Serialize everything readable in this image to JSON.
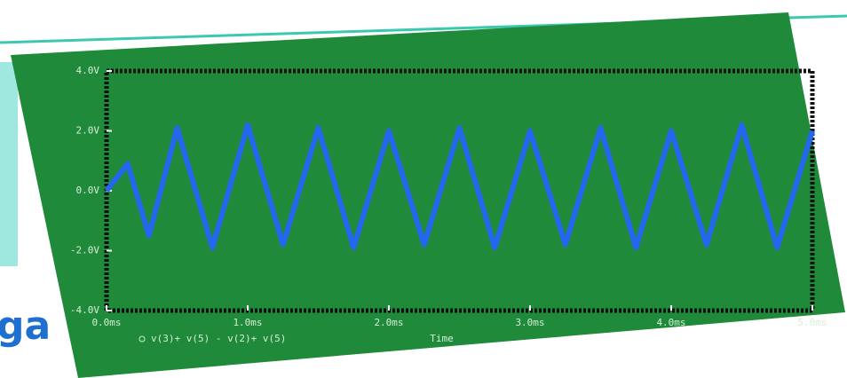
{
  "fragments": [
    "ga"
  ],
  "chart_data": {
    "type": "line",
    "x_label": "Time",
    "x": [
      0.0,
      0.15,
      0.3,
      0.5,
      0.75,
      1.0,
      1.25,
      1.5,
      1.75,
      2.0,
      2.25,
      2.5,
      2.75,
      3.0,
      3.25,
      3.5,
      3.75,
      4.0,
      4.25,
      4.5,
      4.75,
      5.0
    ],
    "series": [
      {
        "name": "v(3)+ v(5) - v(2)+ v(5)",
        "color": "#2466ee",
        "values": [
          0.0,
          0.9,
          -1.5,
          2.1,
          -1.9,
          2.2,
          -1.8,
          2.1,
          -1.9,
          2.0,
          -1.8,
          2.1,
          -1.9,
          2.0,
          -1.8,
          2.1,
          -1.9,
          2.0,
          -1.8,
          2.2,
          -1.9,
          2.0
        ]
      }
    ],
    "xlim": [
      0,
      5
    ],
    "xticks": [
      {
        "value": 0,
        "label": "0.0ms"
      },
      {
        "value": 1,
        "label": "1.0ms"
      },
      {
        "value": 2,
        "label": "2.0ms"
      },
      {
        "value": 3,
        "label": "3.0ms"
      },
      {
        "value": 4,
        "label": "4.0ms"
      },
      {
        "value": 5,
        "label": "5.0ms"
      }
    ],
    "ylim": [
      -4,
      4
    ],
    "yticks": [
      {
        "value": -4,
        "label": "-4.0V"
      },
      {
        "value": -2,
        "label": "-2.0V"
      },
      {
        "value": 0,
        "label": "0.0V"
      },
      {
        "value": 2,
        "label": "2.0V"
      },
      {
        "value": 4,
        "label": "4.0V"
      }
    ],
    "background": "#1f8a3a"
  }
}
